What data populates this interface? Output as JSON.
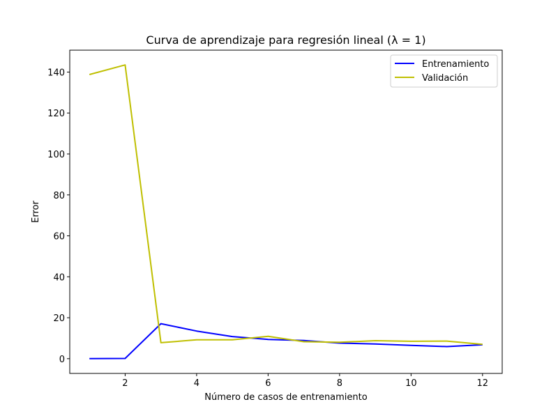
{
  "chart_data": {
    "type": "line",
    "title": "Curva de aprendizaje para regresión lineal (λ = 1)",
    "xlabel": "Número de casos de entrenamiento",
    "ylabel": "Error",
    "x": [
      1,
      2,
      3,
      4,
      5,
      6,
      7,
      8,
      9,
      10,
      11,
      12
    ],
    "xlim": [
      0.45,
      12.55
    ],
    "ylim": [
      -7.2,
      150.7
    ],
    "xticks": [
      2,
      4,
      6,
      8,
      10,
      12
    ],
    "yticks": [
      0,
      20,
      40,
      60,
      80,
      100,
      120,
      140
    ],
    "grid": false,
    "legend_position": "top-right",
    "series": [
      {
        "name": "Entrenamiento",
        "color": "#0000ff",
        "values": [
          0.0,
          0.1,
          17.1,
          13.5,
          10.8,
          9.4,
          8.9,
          7.6,
          7.2,
          6.5,
          5.9,
          6.8
        ]
      },
      {
        "name": "Validación",
        "color": "#bfbf00",
        "values": [
          138.8,
          143.5,
          7.8,
          9.2,
          9.2,
          10.9,
          8.3,
          8.0,
          8.8,
          8.5,
          8.6,
          7.0
        ]
      }
    ]
  }
}
